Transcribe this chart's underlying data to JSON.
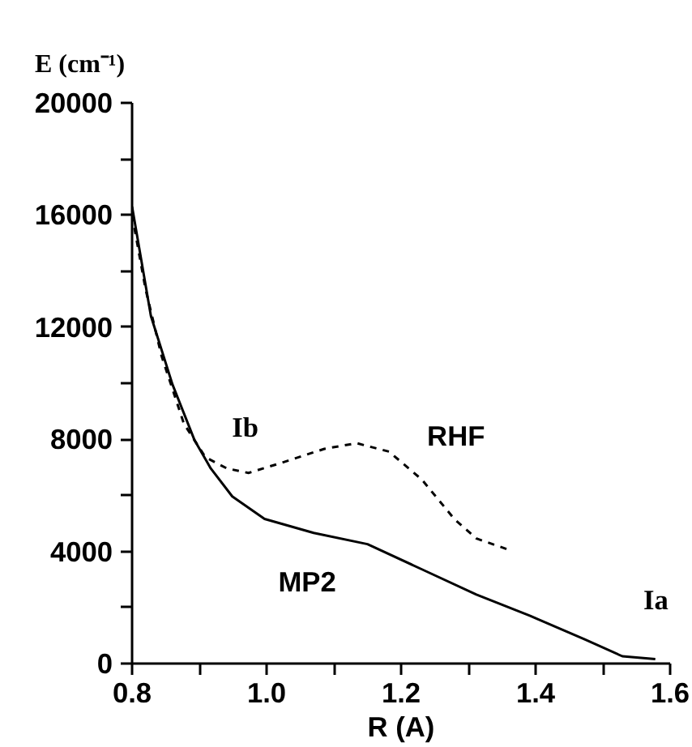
{
  "chart_data": {
    "type": "line",
    "xlabel": "R (A)",
    "ylabel": "E (cm⁻¹)",
    "xlim": [
      0.8,
      1.6
    ],
    "xticks": [
      0.8,
      {
        "value": 1.0,
        "label": "1.0"
      },
      1.2,
      1.4,
      1.6
    ],
    "ylim": [
      0,
      20000
    ],
    "yticks": [
      0,
      4000,
      8000,
      12000,
      16000,
      20000
    ],
    "grid": false,
    "series": [
      {
        "name": "MP2",
        "color": "#000000",
        "line_style": "solid",
        "x": [
          0.8,
          0.828,
          0.86,
          0.893,
          0.917,
          0.949,
          0.997,
          1.07,
          1.15,
          1.231,
          1.312,
          1.392,
          1.473,
          1.529,
          1.578
        ],
        "values": [
          16300,
          12400,
          9960,
          7960,
          6960,
          5960,
          5160,
          4660,
          4260,
          3360,
          2460,
          1700,
          860,
          260,
          160
        ]
      },
      {
        "name": "RHF",
        "color": "#000000",
        "line_style": "dashed",
        "x": [
          0.8,
          0.82,
          0.844,
          0.877,
          0.909,
          0.941,
          0.973,
          1.022,
          1.086,
          1.134,
          1.182,
          1.231,
          1.279,
          1.312,
          1.36
        ],
        "values": [
          16000,
          13360,
          10960,
          8560,
          7360,
          6960,
          6800,
          7160,
          7660,
          7860,
          7560,
          6560,
          5160,
          4460,
          4060
        ]
      }
    ],
    "annotations": [
      {
        "text": "Ib",
        "x": 0.973,
        "y": 6800
      },
      {
        "text": "Ia",
        "x": 1.578,
        "y": 160
      }
    ]
  }
}
